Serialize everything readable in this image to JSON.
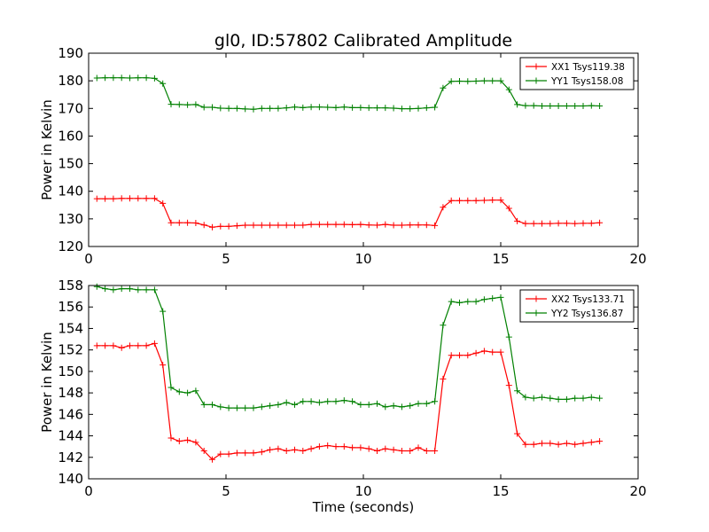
{
  "figure": {
    "title": "gl0, ID:57802 Calibrated Amplitude",
    "xlabel": "Time (seconds)"
  },
  "chart_data": [
    {
      "type": "line",
      "title": "gl0, ID:57802 Calibrated Amplitude",
      "ylabel": "Power in Kelvin",
      "xlabel": "",
      "xlim": [
        0,
        20
      ],
      "ylim": [
        120,
        190
      ],
      "xticks": [
        0,
        5,
        10,
        15,
        20
      ],
      "yticks": [
        120,
        130,
        140,
        150,
        160,
        170,
        180,
        190
      ],
      "grid": false,
      "legend_position": "top-right",
      "x": [
        0.3,
        0.6,
        0.9,
        1.2,
        1.5,
        1.8,
        2.1,
        2.4,
        2.7,
        3.0,
        3.3,
        3.6,
        3.9,
        4.2,
        4.5,
        4.8,
        5.1,
        5.4,
        5.7,
        6.0,
        6.3,
        6.6,
        6.9,
        7.2,
        7.5,
        7.8,
        8.1,
        8.4,
        8.7,
        9.0,
        9.3,
        9.6,
        9.9,
        10.2,
        10.5,
        10.8,
        11.1,
        11.4,
        11.7,
        12.0,
        12.3,
        12.6,
        12.9,
        13.2,
        13.5,
        13.8,
        14.1,
        14.4,
        14.7,
        15.0,
        15.3,
        15.6,
        15.9,
        16.2,
        16.5,
        16.8,
        17.1,
        17.4,
        17.7,
        18.0,
        18.3,
        18.6
      ],
      "series": [
        {
          "name": "XX1 Tsys119.38",
          "color": "#ff0000",
          "values": [
            137.3,
            137.3,
            137.3,
            137.4,
            137.4,
            137.4,
            137.4,
            137.4,
            135.6,
            128.6,
            128.6,
            128.6,
            128.5,
            127.8,
            127.0,
            127.3,
            127.3,
            127.5,
            127.7,
            127.7,
            127.7,
            127.7,
            127.7,
            127.7,
            127.7,
            127.7,
            128.0,
            128.0,
            128.0,
            128.0,
            128.0,
            127.9,
            128.0,
            127.8,
            127.7,
            128.0,
            127.7,
            127.7,
            127.8,
            127.8,
            127.8,
            127.6,
            134.2,
            136.6,
            136.6,
            136.6,
            136.6,
            136.7,
            136.8,
            136.8,
            133.8,
            129.2,
            128.3,
            128.3,
            128.3,
            128.3,
            128.4,
            128.4,
            128.3,
            128.4,
            128.4,
            128.6
          ]
        },
        {
          "name": "YY1 Tsys158.08",
          "color": "#008000",
          "values": [
            181.0,
            181.1,
            181.1,
            181.1,
            181.0,
            181.1,
            181.1,
            180.9,
            179.0,
            171.5,
            171.4,
            171.3,
            171.4,
            170.4,
            170.4,
            170.1,
            170.0,
            170.0,
            169.8,
            169.7,
            170.0,
            170.0,
            170.0,
            170.2,
            170.5,
            170.3,
            170.5,
            170.5,
            170.4,
            170.3,
            170.5,
            170.3,
            170.3,
            170.2,
            170.2,
            170.2,
            170.1,
            169.9,
            169.9,
            170.0,
            170.2,
            170.4,
            177.4,
            179.8,
            179.9,
            179.8,
            179.9,
            180.0,
            180.0,
            180.0,
            176.8,
            171.4,
            171.0,
            171.0,
            170.9,
            170.9,
            170.9,
            170.9,
            170.9,
            170.9,
            171.0,
            170.9
          ]
        }
      ]
    },
    {
      "type": "line",
      "title": "",
      "ylabel": "Power in Kelvin",
      "xlabel": "Time (seconds)",
      "xlim": [
        0,
        20
      ],
      "ylim": [
        140,
        158
      ],
      "xticks": [
        0,
        5,
        10,
        15,
        20
      ],
      "yticks": [
        140,
        142,
        144,
        146,
        148,
        150,
        152,
        154,
        156,
        158
      ],
      "grid": false,
      "legend_position": "top-right",
      "x": [
        0.3,
        0.6,
        0.9,
        1.2,
        1.5,
        1.8,
        2.1,
        2.4,
        2.7,
        3.0,
        3.3,
        3.6,
        3.9,
        4.2,
        4.5,
        4.8,
        5.1,
        5.4,
        5.7,
        6.0,
        6.3,
        6.6,
        6.9,
        7.2,
        7.5,
        7.8,
        8.1,
        8.4,
        8.7,
        9.0,
        9.3,
        9.6,
        9.9,
        10.2,
        10.5,
        10.8,
        11.1,
        11.4,
        11.7,
        12.0,
        12.3,
        12.6,
        12.9,
        13.2,
        13.5,
        13.8,
        14.1,
        14.4,
        14.7,
        15.0,
        15.3,
        15.6,
        15.9,
        16.2,
        16.5,
        16.8,
        17.1,
        17.4,
        17.7,
        18.0,
        18.3,
        18.6
      ],
      "series": [
        {
          "name": "XX2 Tsys133.71",
          "color": "#ff0000",
          "values": [
            152.4,
            152.4,
            152.4,
            152.2,
            152.4,
            152.4,
            152.4,
            152.6,
            150.6,
            143.8,
            143.5,
            143.6,
            143.4,
            142.6,
            141.8,
            142.3,
            142.3,
            142.4,
            142.4,
            142.4,
            142.5,
            142.7,
            142.8,
            142.6,
            142.7,
            142.6,
            142.8,
            143.0,
            143.1,
            143.0,
            143.0,
            142.9,
            142.9,
            142.8,
            142.6,
            142.8,
            142.7,
            142.6,
            142.6,
            142.9,
            142.6,
            142.6,
            149.3,
            151.5,
            151.5,
            151.5,
            151.7,
            151.9,
            151.8,
            151.8,
            148.7,
            144.2,
            143.2,
            143.2,
            143.3,
            143.3,
            143.2,
            143.3,
            143.2,
            143.3,
            143.4,
            143.5
          ]
        },
        {
          "name": "YY2 Tsys136.87",
          "color": "#008000",
          "values": [
            157.9,
            157.7,
            157.6,
            157.7,
            157.7,
            157.6,
            157.6,
            157.6,
            155.6,
            148.5,
            148.1,
            148.0,
            148.2,
            146.9,
            146.9,
            146.7,
            146.6,
            146.6,
            146.6,
            146.6,
            146.7,
            146.8,
            146.9,
            147.1,
            146.9,
            147.2,
            147.2,
            147.1,
            147.2,
            147.2,
            147.3,
            147.2,
            146.9,
            146.9,
            147.0,
            146.7,
            146.8,
            146.7,
            146.8,
            147.0,
            147.0,
            147.2,
            154.3,
            156.5,
            156.4,
            156.5,
            156.5,
            156.7,
            156.8,
            156.9,
            153.2,
            148.2,
            147.6,
            147.5,
            147.6,
            147.5,
            147.4,
            147.4,
            147.5,
            147.5,
            147.6,
            147.5
          ]
        }
      ]
    }
  ]
}
